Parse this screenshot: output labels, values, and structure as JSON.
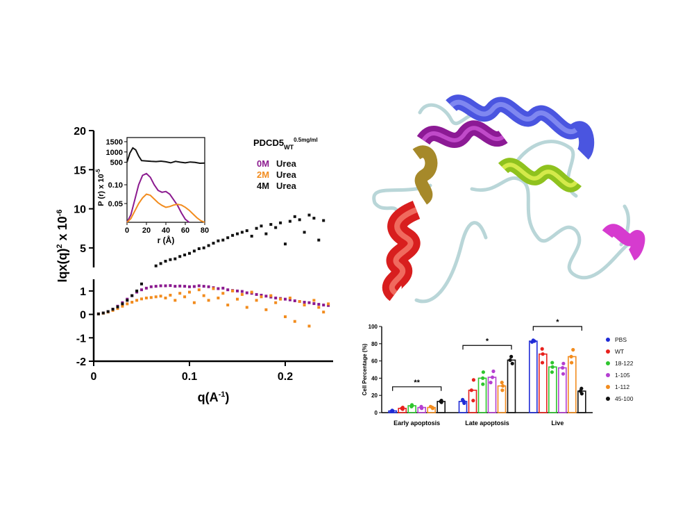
{
  "chart_data": [
    {
      "type": "scatter",
      "title": "PDCD5",
      "title_sub": "WT",
      "title_sup": "0.5mg/ml",
      "xlabel": "q(A",
      "xlabel_sup": "-1",
      "xlabel_close": ")",
      "ylabel": "Iqx(q)",
      "ylabel_sup1": "2",
      "ylabel_mid": " x 10",
      "ylabel_sup2": "-6",
      "xlim": [
        0,
        0.25
      ],
      "ylim_lower": [
        -2,
        1.5
      ],
      "ylim_upper": [
        2.5,
        20
      ],
      "broken_y_axis": true,
      "x_ticks": [
        "0",
        "0.1",
        "0.2"
      ],
      "y_ticks_lower": [
        "-2",
        "-1",
        "0",
        "1"
      ],
      "y_ticks_upper": [
        "5",
        "10",
        "15",
        "20"
      ],
      "legend": [
        {
          "label": "0M",
          "unit": "Urea",
          "color": "#8b1a8f"
        },
        {
          "label": "2M",
          "unit": "Urea",
          "color": "#f28c1e"
        },
        {
          "label": "4M",
          "unit": "Urea",
          "color": "#111111"
        }
      ],
      "series": [
        {
          "name": "0M",
          "color": "#8b1a8f",
          "x": [
            0.005,
            0.01,
            0.015,
            0.02,
            0.025,
            0.03,
            0.035,
            0.04,
            0.045,
            0.05,
            0.055,
            0.06,
            0.065,
            0.07,
            0.075,
            0.08,
            0.085,
            0.09,
            0.095,
            0.1,
            0.105,
            0.11,
            0.115,
            0.12,
            0.125,
            0.13,
            0.135,
            0.14,
            0.145,
            0.15,
            0.155,
            0.16,
            0.165,
            0.17,
            0.175,
            0.18,
            0.185,
            0.19,
            0.195,
            0.2,
            0.205,
            0.21,
            0.215,
            0.22,
            0.225,
            0.23,
            0.235,
            0.24,
            0.245
          ],
          "y": [
            0.02,
            0.06,
            0.12,
            0.22,
            0.35,
            0.5,
            0.65,
            0.8,
            0.95,
            1.05,
            1.12,
            1.18,
            1.2,
            1.22,
            1.22,
            1.23,
            1.2,
            1.21,
            1.2,
            1.18,
            1.19,
            1.22,
            1.2,
            1.18,
            1.14,
            1.1,
            1.12,
            1.05,
            1.02,
            1.0,
            0.98,
            0.92,
            0.9,
            0.85,
            0.82,
            0.78,
            0.74,
            0.7,
            0.68,
            0.65,
            0.62,
            0.58,
            0.55,
            0.52,
            0.5,
            0.46,
            0.43,
            0.4,
            0.38
          ]
        },
        {
          "name": "2M",
          "color": "#f28c1e",
          "x": [
            0.005,
            0.01,
            0.015,
            0.02,
            0.025,
            0.03,
            0.035,
            0.04,
            0.045,
            0.05,
            0.055,
            0.06,
            0.065,
            0.07,
            0.075,
            0.08,
            0.085,
            0.09,
            0.095,
            0.1,
            0.105,
            0.11,
            0.115,
            0.12,
            0.125,
            0.13,
            0.135,
            0.14,
            0.145,
            0.15,
            0.155,
            0.16,
            0.165,
            0.17,
            0.175,
            0.18,
            0.185,
            0.19,
            0.195,
            0.2,
            0.205,
            0.21,
            0.215,
            0.22,
            0.225,
            0.23,
            0.235,
            0.24,
            0.245
          ],
          "y": [
            0.02,
            0.05,
            0.1,
            0.17,
            0.25,
            0.35,
            0.45,
            0.52,
            0.6,
            0.66,
            0.7,
            0.72,
            0.75,
            0.78,
            0.7,
            0.82,
            0.6,
            0.9,
            0.75,
            0.95,
            0.5,
            1.05,
            0.8,
            0.6,
            1.1,
            0.7,
            0.9,
            0.4,
            1.0,
            0.65,
            0.85,
            0.3,
            0.95,
            0.6,
            0.75,
            0.2,
            0.8,
            0.5,
            0.65,
            -0.1,
            0.7,
            -0.3,
            0.55,
            0.4,
            -0.5,
            0.6,
            0.3,
            0.1,
            0.45
          ]
        },
        {
          "name": "4M",
          "color": "#111111",
          "x": [
            0.005,
            0.01,
            0.015,
            0.02,
            0.025,
            0.03,
            0.035,
            0.04,
            0.045,
            0.05,
            0.055,
            0.06,
            0.065,
            0.07,
            0.075,
            0.08,
            0.085,
            0.09,
            0.095,
            0.1,
            0.105,
            0.11,
            0.115,
            0.12,
            0.125,
            0.13,
            0.135,
            0.14,
            0.145,
            0.15,
            0.155,
            0.16,
            0.165,
            0.17,
            0.175,
            0.18,
            0.185,
            0.19,
            0.195,
            0.2,
            0.205,
            0.21,
            0.215,
            0.22,
            0.225,
            0.23,
            0.235,
            0.24
          ],
          "y": [
            0.02,
            0.06,
            0.12,
            0.22,
            0.32,
            0.45,
            0.6,
            0.8,
            1.0,
            1.3,
            1.8,
            2.3,
            2.7,
            3.0,
            3.3,
            3.5,
            3.6,
            3.9,
            4.1,
            4.3,
            4.6,
            4.9,
            5.0,
            5.3,
            5.6,
            5.9,
            6.0,
            6.3,
            6.6,
            6.8,
            7.0,
            7.2,
            6.5,
            7.5,
            7.8,
            6.8,
            8.0,
            7.6,
            8.2,
            5.5,
            8.4,
            9.0,
            8.6,
            7.0,
            9.2,
            8.8,
            6.0,
            8.5
          ]
        }
      ],
      "inset": {
        "type": "line",
        "xlabel": "r (Å)",
        "ylabel": "P (r) x 10",
        "ylabel_sup": "-5",
        "xlim": [
          0,
          80
        ],
        "x_ticks": [
          "0",
          "20",
          "40",
          "60",
          "80"
        ],
        "y_ticks_upper": [
          "500",
          "1000",
          "1500"
        ],
        "y_ticks_lower": [
          "0.05",
          "0.10"
        ],
        "series": [
          {
            "name": "4M",
            "color": "#111111",
            "x": [
              0,
              3,
              6,
              9,
              12,
              15,
              20,
              25,
              30,
              35,
              40,
              45,
              50,
              55,
              60,
              65,
              70,
              75,
              80
            ],
            "y": [
              500,
              950,
              1200,
              1100,
              800,
              580,
              560,
              540,
              530,
              550,
              520,
              470,
              540,
              500,
              470,
              510,
              490,
              450,
              460
            ]
          },
          {
            "name": "0M",
            "color": "#8b1a8f",
            "x": [
              0,
              4,
              8,
              12,
              16,
              20,
              24,
              28,
              32,
              36,
              40,
              44,
              48,
              52,
              56,
              60,
              64
            ],
            "y": [
              0,
              0.02,
              0.06,
              0.1,
              0.125,
              0.13,
              0.12,
              0.1,
              0.085,
              0.08,
              0.082,
              0.075,
              0.06,
              0.045,
              0.025,
              0.008,
              0
            ]
          },
          {
            "name": "2M",
            "color": "#f28c1e",
            "x": [
              0,
              4,
              8,
              12,
              16,
              20,
              24,
              28,
              32,
              36,
              40,
              44,
              48,
              52,
              56,
              60,
              64,
              68,
              72,
              76,
              80
            ],
            "y": [
              0,
              0.01,
              0.03,
              0.05,
              0.065,
              0.075,
              0.072,
              0.062,
              0.052,
              0.045,
              0.04,
              0.042,
              0.046,
              0.048,
              0.046,
              0.04,
              0.032,
              0.022,
              0.012,
              0.004,
              0
            ]
          }
        ]
      }
    },
    {
      "type": "bar",
      "ylabel": "Cell Percentage (%)",
      "ylim": [
        0,
        100
      ],
      "y_ticks": [
        "0",
        "20",
        "40",
        "60",
        "80",
        "100"
      ],
      "categories": [
        "Early apoptosis",
        "Late apoptosis",
        "Live"
      ],
      "series": [
        {
          "name": "PBS",
          "color": "#1f2bd6",
          "values": [
            2,
            13,
            83
          ],
          "points": [
            [
              1.5,
              2,
              2.5
            ],
            [
              11,
              13,
              15
            ],
            [
              82,
              83,
              84
            ]
          ]
        },
        {
          "name": "WT",
          "color": "#e8211d",
          "values": [
            5,
            26,
            68
          ],
          "points": [
            [
              4,
              5,
              6
            ],
            [
              14,
              26,
              38
            ],
            [
              58,
              68,
              74
            ]
          ]
        },
        {
          "name": "18-122",
          "color": "#2ec52e",
          "values": [
            8,
            40,
            53
          ],
          "points": [
            [
              7,
              8,
              9
            ],
            [
              33,
              40,
              47
            ],
            [
              47,
              53,
              58
            ]
          ]
        },
        {
          "name": "1-105",
          "color": "#b43fd1",
          "values": [
            6,
            41,
            52
          ],
          "points": [
            [
              5,
              6,
              7
            ],
            [
              35,
              41,
              48
            ],
            [
              45,
              52,
              57
            ]
          ]
        },
        {
          "name": "1-112",
          "color": "#f28c1e",
          "values": [
            6,
            31,
            65
          ],
          "points": [
            [
              5,
              6,
              7
            ],
            [
              26,
              31,
              35
            ],
            [
              58,
              65,
              73
            ]
          ]
        },
        {
          "name": "45-100",
          "color": "#111111",
          "values": [
            13,
            61,
            25
          ],
          "points": [
            [
              12,
              13,
              14
            ],
            [
              57,
              61,
              65
            ],
            [
              22,
              25,
              28
            ]
          ]
        }
      ],
      "significance": [
        {
          "category_index": 0,
          "label": "**",
          "y": 30
        },
        {
          "category_index": 1,
          "label": "*",
          "y": 78
        },
        {
          "category_index": 2,
          "label": "*",
          "y": 100
        }
      ]
    }
  ]
}
